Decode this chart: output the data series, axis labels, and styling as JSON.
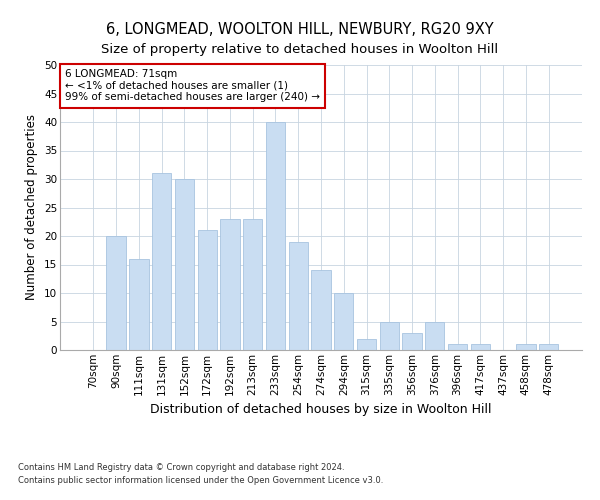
{
  "title1": "6, LONGMEAD, WOOLTON HILL, NEWBURY, RG20 9XY",
  "title2": "Size of property relative to detached houses in Woolton Hill",
  "xlabel": "Distribution of detached houses by size in Woolton Hill",
  "ylabel": "Number of detached properties",
  "footnote1": "Contains HM Land Registry data © Crown copyright and database right 2024.",
  "footnote2": "Contains public sector information licensed under the Open Government Licence v3.0.",
  "annotation_line1": "6 LONGMEAD: 71sqm",
  "annotation_line2": "← <1% of detached houses are smaller (1)",
  "annotation_line3": "99% of semi-detached houses are larger (240) →",
  "categories": [
    "70sqm",
    "90sqm",
    "111sqm",
    "131sqm",
    "152sqm",
    "172sqm",
    "192sqm",
    "213sqm",
    "233sqm",
    "254sqm",
    "274sqm",
    "294sqm",
    "315sqm",
    "335sqm",
    "356sqm",
    "376sqm",
    "396sqm",
    "417sqm",
    "437sqm",
    "458sqm",
    "478sqm"
  ],
  "values": [
    0,
    20,
    16,
    31,
    30,
    21,
    23,
    23,
    40,
    19,
    14,
    10,
    2,
    5,
    3,
    5,
    1,
    1,
    0,
    1,
    1
  ],
  "bar_color": "#c9ddf2",
  "bar_edge_color": "#a8c4e0",
  "ylim": [
    0,
    50
  ],
  "yticks": [
    0,
    5,
    10,
    15,
    20,
    25,
    30,
    35,
    40,
    45,
    50
  ],
  "bg_color": "#ffffff",
  "grid_color": "#c8d4e0",
  "annotation_box_color": "#cc0000",
  "title1_fontsize": 10.5,
  "title2_fontsize": 9.5,
  "xlabel_fontsize": 9,
  "ylabel_fontsize": 8.5,
  "tick_fontsize": 7.5,
  "annotation_fontsize": 7.5,
  "footnote_fontsize": 6
}
